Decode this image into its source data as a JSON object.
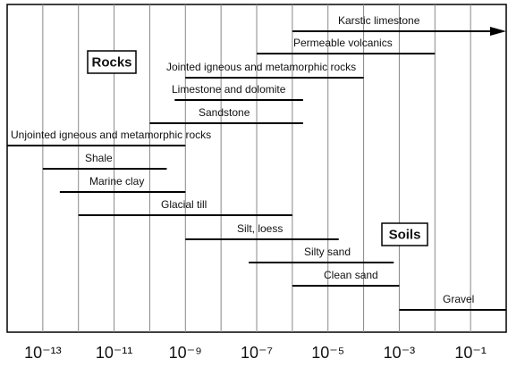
{
  "chart_data": {
    "type": "range-bar",
    "categories": [
      "Karstic limestone",
      "Permeable volcanics",
      "Jointed igneous and metamorphic rocks",
      "Limestone and dolomite",
      "Sandstone",
      "Unjointed igneous and metamorphic rocks",
      "Shale",
      "Marine clay",
      "Glacial till",
      "Silt, loess",
      "Silty sand",
      "Clean sand",
      "Gravel"
    ],
    "low": [
      1e-06,
      1e-07,
      1e-09,
      5e-10,
      1e-10,
      1e-14,
      1e-13,
      3e-13,
      1e-12,
      1e-09,
      6e-08,
      1e-06,
      0.001
    ],
    "high": [
      1,
      0.01,
      0.0001,
      2e-06,
      2e-06,
      1e-09,
      3e-10,
      1e-09,
      1e-06,
      2e-05,
      0.0007,
      0.001,
      1
    ],
    "open_right": [
      true,
      false,
      false,
      false,
      false,
      false,
      false,
      false,
      false,
      false,
      false,
      false,
      false
    ],
    "color": "#000000",
    "annotations": [
      "Rocks",
      "Soils"
    ],
    "xscale": "log",
    "xlim": [
      1e-14,
      1
    ],
    "xticks": [
      {
        "value": 1e-13,
        "label": "10⁻¹³"
      },
      {
        "value": 1e-11,
        "label": "10⁻¹¹"
      },
      {
        "value": 1e-09,
        "label": "10⁻⁹"
      },
      {
        "value": 1e-07,
        "label": "10⁻⁷"
      },
      {
        "value": 1e-05,
        "label": "10⁻⁵"
      },
      {
        "value": 0.001,
        "label": "10⁻³"
      },
      {
        "value": 0.1,
        "label": "10⁻¹"
      }
    ],
    "xgrid": [
      1e-13,
      1e-12,
      1e-11,
      1e-10,
      1e-09,
      1e-08,
      1e-07,
      1e-06,
      1e-05,
      0.0001,
      0.001,
      0.01,
      0.1
    ],
    "grid": true
  }
}
